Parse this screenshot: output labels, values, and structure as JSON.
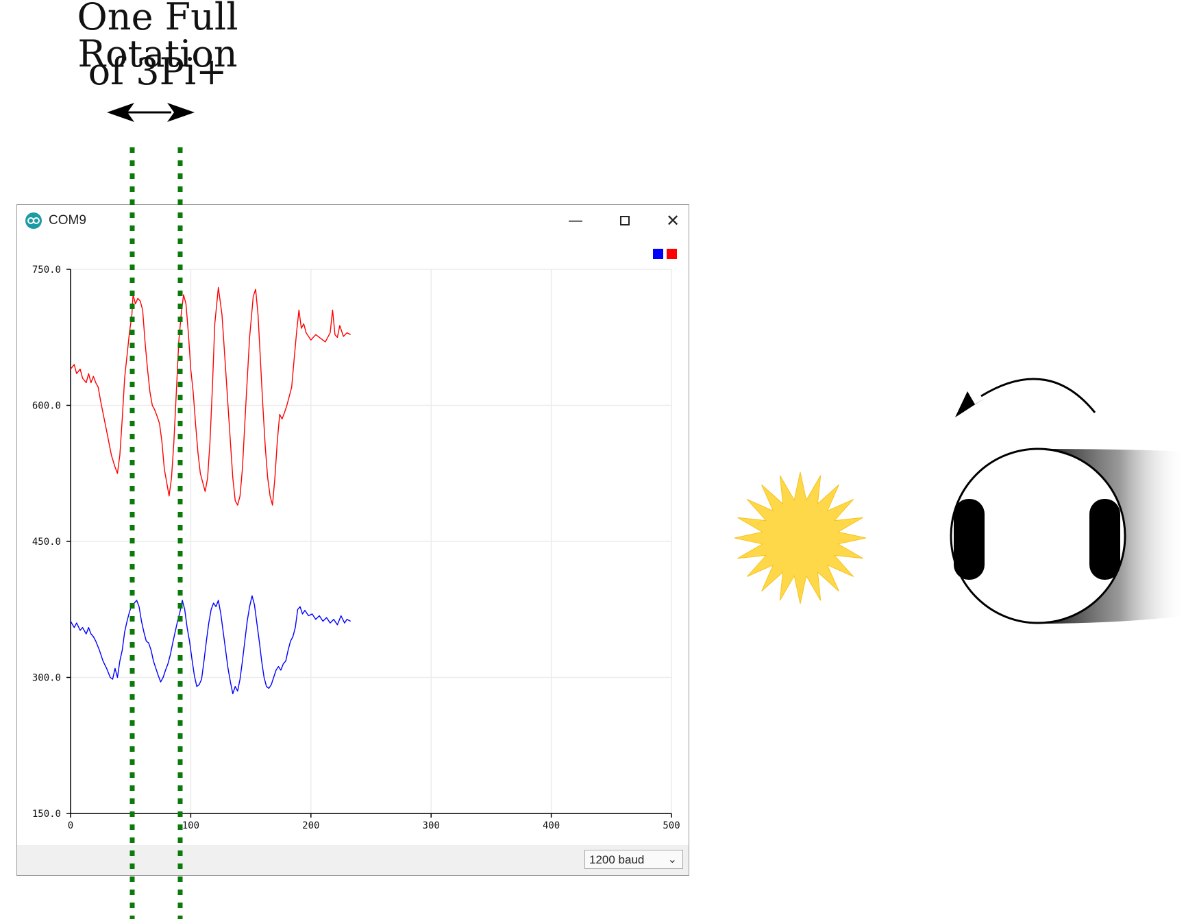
{
  "heading": {
    "line1": "One Full Rotation",
    "line2": "of 3Pi+"
  },
  "window": {
    "title": "COM9",
    "icon": "arduino-icon",
    "controls": {
      "minimize": "minimize-icon",
      "maximize": "maximize-icon",
      "close": "close-icon"
    }
  },
  "legend_colors": [
    "#0000ff",
    "#ff0000"
  ],
  "footer": {
    "baud_value": "1200 baud",
    "baud_icon": "chevron-down-icon"
  },
  "annotations": {
    "rotation_start_x": 52,
    "rotation_end_x": 92,
    "robot_icon": "robot-top-view-icon",
    "light_icon": "sun-icon",
    "turn_icon": "counterclockwise-arrow-icon"
  },
  "chart_data": {
    "type": "line",
    "xlim": [
      0,
      500
    ],
    "ylim": [
      150,
      750
    ],
    "x_ticks": [
      "0",
      "100",
      "200",
      "300",
      "400",
      "500"
    ],
    "y_ticks": [
      "750.0",
      "600.0",
      "450.0",
      "300.0",
      "150.0"
    ],
    "grid": true,
    "legend": "top-right",
    "series": [
      {
        "color": "#ff0000",
        "points": [
          [
            0,
            640
          ],
          [
            3,
            645
          ],
          [
            5,
            635
          ],
          [
            8,
            640
          ],
          [
            10,
            630
          ],
          [
            13,
            625
          ],
          [
            15,
            635
          ],
          [
            17,
            625
          ],
          [
            19,
            632
          ],
          [
            21,
            625
          ],
          [
            23,
            620
          ],
          [
            25,
            605
          ],
          [
            28,
            585
          ],
          [
            31,
            565
          ],
          [
            34,
            545
          ],
          [
            37,
            532
          ],
          [
            39,
            525
          ],
          [
            41,
            545
          ],
          [
            43,
            585
          ],
          [
            45,
            630
          ],
          [
            47,
            655
          ],
          [
            49,
            680
          ],
          [
            51,
            700
          ],
          [
            52,
            722
          ],
          [
            54,
            712
          ],
          [
            56,
            718
          ],
          [
            58,
            715
          ],
          [
            60,
            705
          ],
          [
            62,
            670
          ],
          [
            64,
            640
          ],
          [
            66,
            615
          ],
          [
            68,
            600
          ],
          [
            70,
            595
          ],
          [
            72,
            588
          ],
          [
            74,
            580
          ],
          [
            76,
            560
          ],
          [
            78,
            530
          ],
          [
            80,
            515
          ],
          [
            82,
            500
          ],
          [
            84,
            520
          ],
          [
            86,
            560
          ],
          [
            88,
            615
          ],
          [
            90,
            670
          ],
          [
            92,
            700
          ],
          [
            94,
            722
          ],
          [
            96,
            712
          ],
          [
            98,
            680
          ],
          [
            100,
            640
          ],
          [
            102,
            615
          ],
          [
            104,
            580
          ],
          [
            106,
            548
          ],
          [
            108,
            525
          ],
          [
            110,
            515
          ],
          [
            112,
            505
          ],
          [
            114,
            520
          ],
          [
            116,
            560
          ],
          [
            118,
            620
          ],
          [
            120,
            690
          ],
          [
            123,
            730
          ],
          [
            126,
            700
          ],
          [
            129,
            640
          ],
          [
            132,
            580
          ],
          [
            135,
            520
          ],
          [
            137,
            495
          ],
          [
            139,
            490
          ],
          [
            141,
            500
          ],
          [
            143,
            530
          ],
          [
            146,
            605
          ],
          [
            149,
            675
          ],
          [
            152,
            720
          ],
          [
            154,
            728
          ],
          [
            156,
            700
          ],
          [
            158,
            650
          ],
          [
            160,
            600
          ],
          [
            162,
            555
          ],
          [
            164,
            520
          ],
          [
            166,
            500
          ],
          [
            168,
            490
          ],
          [
            170,
            520
          ],
          [
            172,
            560
          ],
          [
            174,
            590
          ],
          [
            176,
            585
          ],
          [
            178,
            592
          ],
          [
            180,
            600
          ],
          [
            182,
            610
          ],
          [
            184,
            620
          ],
          [
            186,
            650
          ],
          [
            188,
            680
          ],
          [
            190,
            705
          ],
          [
            192,
            685
          ],
          [
            194,
            690
          ],
          [
            196,
            680
          ],
          [
            198,
            676
          ],
          [
            200,
            672
          ],
          [
            204,
            678
          ],
          [
            208,
            674
          ],
          [
            212,
            670
          ],
          [
            216,
            680
          ],
          [
            218,
            705
          ],
          [
            220,
            678
          ],
          [
            222,
            675
          ],
          [
            224,
            688
          ],
          [
            227,
            676
          ],
          [
            230,
            680
          ],
          [
            233,
            678
          ]
        ]
      },
      {
        "color": "#0000ff",
        "points": [
          [
            0,
            362
          ],
          [
            3,
            355
          ],
          [
            5,
            360
          ],
          [
            8,
            352
          ],
          [
            10,
            355
          ],
          [
            13,
            348
          ],
          [
            15,
            355
          ],
          [
            17,
            348
          ],
          [
            19,
            345
          ],
          [
            21,
            340
          ],
          [
            24,
            330
          ],
          [
            27,
            318
          ],
          [
            30,
            310
          ],
          [
            33,
            300
          ],
          [
            35,
            298
          ],
          [
            37,
            310
          ],
          [
            39,
            300
          ],
          [
            41,
            318
          ],
          [
            43,
            330
          ],
          [
            45,
            350
          ],
          [
            47,
            362
          ],
          [
            49,
            372
          ],
          [
            51,
            380
          ],
          [
            53,
            382
          ],
          [
            55,
            385
          ],
          [
            57,
            378
          ],
          [
            59,
            362
          ],
          [
            61,
            350
          ],
          [
            63,
            340
          ],
          [
            65,
            338
          ],
          [
            67,
            330
          ],
          [
            69,
            318
          ],
          [
            71,
            310
          ],
          [
            73,
            302
          ],
          [
            75,
            295
          ],
          [
            77,
            300
          ],
          [
            79,
            308
          ],
          [
            81,
            315
          ],
          [
            83,
            325
          ],
          [
            85,
            338
          ],
          [
            87,
            350
          ],
          [
            89,
            362
          ],
          [
            91,
            372
          ],
          [
            93,
            385
          ],
          [
            95,
            375
          ],
          [
            97,
            355
          ],
          [
            99,
            340
          ],
          [
            101,
            320
          ],
          [
            103,
            302
          ],
          [
            105,
            290
          ],
          [
            107,
            292
          ],
          [
            109,
            298
          ],
          [
            111,
            318
          ],
          [
            113,
            340
          ],
          [
            115,
            360
          ],
          [
            117,
            375
          ],
          [
            119,
            382
          ],
          [
            121,
            378
          ],
          [
            123,
            385
          ],
          [
            125,
            370
          ],
          [
            127,
            350
          ],
          [
            129,
            330
          ],
          [
            131,
            310
          ],
          [
            133,
            295
          ],
          [
            135,
            282
          ],
          [
            137,
            290
          ],
          [
            139,
            285
          ],
          [
            141,
            298
          ],
          [
            143,
            318
          ],
          [
            145,
            340
          ],
          [
            147,
            362
          ],
          [
            149,
            378
          ],
          [
            151,
            390
          ],
          [
            153,
            380
          ],
          [
            155,
            360
          ],
          [
            157,
            340
          ],
          [
            159,
            318
          ],
          [
            161,
            300
          ],
          [
            163,
            290
          ],
          [
            165,
            288
          ],
          [
            167,
            292
          ],
          [
            169,
            300
          ],
          [
            171,
            308
          ],
          [
            173,
            312
          ],
          [
            175,
            308
          ],
          [
            177,
            315
          ],
          [
            179,
            318
          ],
          [
            181,
            330
          ],
          [
            183,
            340
          ],
          [
            185,
            345
          ],
          [
            187,
            355
          ],
          [
            189,
            375
          ],
          [
            191,
            378
          ],
          [
            193,
            370
          ],
          [
            195,
            374
          ],
          [
            198,
            368
          ],
          [
            201,
            370
          ],
          [
            204,
            364
          ],
          [
            207,
            368
          ],
          [
            210,
            362
          ],
          [
            213,
            366
          ],
          [
            216,
            360
          ],
          [
            219,
            364
          ],
          [
            222,
            358
          ],
          [
            225,
            368
          ],
          [
            228,
            360
          ],
          [
            230,
            364
          ],
          [
            233,
            362
          ]
        ]
      }
    ]
  }
}
